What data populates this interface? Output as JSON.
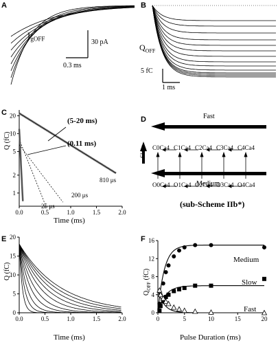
{
  "panels": {
    "A": {
      "label": "A",
      "ylabel": "I",
      "ysub": "gOFF",
      "scale_y": "30 pA",
      "scale_x": "0.3 ms"
    },
    "B": {
      "label": "B",
      "ylabel": "Q",
      "ysub": "OFF",
      "scale_y": "5 fC",
      "scale_x": "1 ms"
    },
    "C": {
      "label": "C",
      "ylabel": "Q (fC)",
      "xlabel": "Time (ms)",
      "annotations": [
        "(5-20 ms)",
        "(0.11 ms)",
        "810 μs",
        "200 μs",
        "25 μs"
      ]
    },
    "D": {
      "label": "D",
      "fast": "Fast",
      "slow": "Slow",
      "medium": "Medium",
      "caption": "(sub-Scheme IIb*)",
      "top_states": [
        "C0Ca4",
        "C1Ca4",
        "C2Ca4",
        "C3Ca4",
        "C4Ca4"
      ],
      "bottom_states": [
        "O0Ca4",
        "O1Ca4",
        "O2Ca4",
        "O3Ca4",
        "O4Ca4"
      ]
    },
    "E": {
      "label": "E",
      "ylabel": "Q (fC)",
      "xlabel": "Time (ms)"
    },
    "F": {
      "label": "F",
      "ylabel": "Q",
      "ysub": "OFF",
      "yunit": " (fC)",
      "xlabel": "Pulse Duration (ms)",
      "series_labels": [
        "Medium",
        "Slow",
        "Fast"
      ]
    }
  },
  "chart_data": [
    {
      "panel": "C",
      "type": "line",
      "ylog": true,
      "xlim": [
        0,
        2
      ],
      "ylim": [
        0.6,
        25
      ],
      "xticks": [
        "0.0",
        "0.5",
        "1.0",
        "1.5",
        "2.0"
      ],
      "yticks": [
        "1",
        "2",
        "5",
        "10",
        "20"
      ]
    },
    {
      "panel": "E",
      "type": "line",
      "xlim": [
        0,
        2
      ],
      "ylim": [
        0,
        22
      ],
      "xticks": [
        "0.0",
        "0.5",
        "1.0",
        "1.5",
        "2.0"
      ],
      "yticks": [
        "0",
        "5",
        "10",
        "15",
        "20"
      ]
    },
    {
      "panel": "F",
      "type": "scatter",
      "xlim": [
        0,
        20
      ],
      "ylim": [
        0,
        16
      ],
      "xticks": [
        "0",
        "5",
        "10",
        "15",
        "20"
      ],
      "yticks": [
        "0",
        "4",
        "8",
        "12",
        "16"
      ],
      "series": [
        {
          "name": "Medium",
          "x": [
            0.3,
            0.5,
            1,
            1.5,
            2,
            3,
            4,
            5,
            7,
            10,
            20
          ],
          "y": [
            2,
            4,
            6.5,
            9,
            10.5,
            12.5,
            13.8,
            14.5,
            15,
            15,
            14.5
          ]
        },
        {
          "name": "Slow",
          "x": [
            0.3,
            0.5,
            1,
            1.5,
            2,
            3,
            4,
            5,
            7,
            10,
            20
          ],
          "y": [
            0.5,
            1.5,
            2.5,
            3.5,
            4,
            4.8,
            5.2,
            5.5,
            6,
            6,
            7.5
          ]
        },
        {
          "name": "Fast",
          "x": [
            0.3,
            0.5,
            1,
            1.5,
            2,
            3,
            4,
            5,
            7,
            10,
            20
          ],
          "y": [
            5,
            4,
            3.2,
            2.5,
            2,
            1.2,
            0.8,
            0.5,
            0.3,
            0.1,
            0
          ]
        }
      ]
    }
  ]
}
